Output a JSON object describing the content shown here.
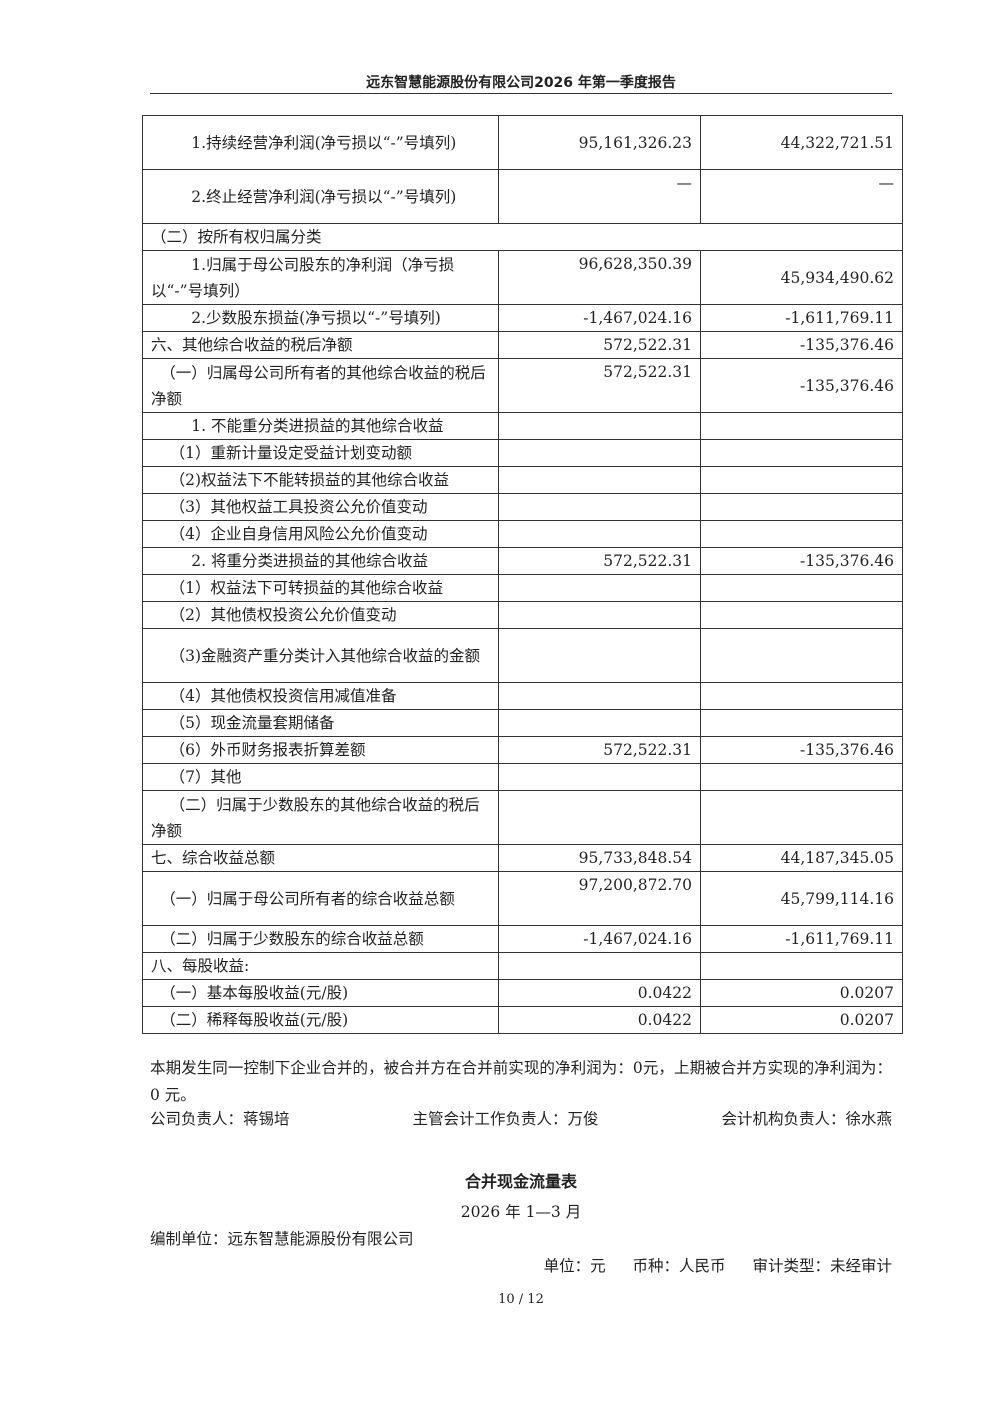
{
  "header": {
    "title": "远东智慧能源股份有限公司2026 年第一季度报告"
  },
  "table": {
    "rows": [
      {
        "label": "1.持续经营净利润(净亏损以“-”号填列)",
        "level": 3,
        "v1": "95,161,326.23",
        "v2": "44,322,721.51",
        "lines": 2,
        "v1_top": false
      },
      {
        "label": "2.终止经营净利润(净亏损以“-”号填列)",
        "level": 3,
        "v1": "—",
        "v2": "—",
        "lines": 2,
        "v1_top": true,
        "v2_top": true
      },
      {
        "label": "（二）按所有权归属分类",
        "level": 0,
        "span": true,
        "lines": 1
      },
      {
        "label": "1.归属于母公司股东的净利润（净亏损以“-”号填列）",
        "level": 3,
        "v1": "96,628,350.39",
        "v2": "45,934,490.62",
        "lines": 2,
        "v1_top": true
      },
      {
        "label": "2.少数股东损益(净亏损以“-”号填列)",
        "level": 3,
        "v1": "-1,467,024.16",
        "v2": "-1,611,769.11",
        "lines": 1
      },
      {
        "label": "六、其他综合收益的税后净额",
        "level": 0,
        "v1": "572,522.31",
        "v2": "-135,376.46",
        "lines": 1
      },
      {
        "label": "（一）归属母公司所有者的其他综合收益的税后净额",
        "level": 1,
        "v1": "572,522.31",
        "v2": "-135,376.46",
        "lines": 2,
        "v1_top": true
      },
      {
        "label": "1. 不能重分类进损益的其他综合收益",
        "level": 3,
        "v1": "",
        "v2": "",
        "lines": 1
      },
      {
        "label": "（1）重新计量设定受益计划变动额",
        "level": 2,
        "v1": "",
        "v2": "",
        "lines": 1
      },
      {
        "label": "（2)权益法下不能转损益的其他综合收益",
        "level": 2,
        "v1": "",
        "v2": "",
        "lines": 1
      },
      {
        "label": "（3）其他权益工具投资公允价值变动",
        "level": 2,
        "v1": "",
        "v2": "",
        "lines": 1
      },
      {
        "label": "（4）企业自身信用风险公允价值变动",
        "level": 2,
        "v1": "",
        "v2": "",
        "lines": 1
      },
      {
        "label": "2. 将重分类进损益的其他综合收益",
        "level": 3,
        "v1": "572,522.31",
        "v2": "-135,376.46",
        "lines": 1
      },
      {
        "label": "（1）权益法下可转损益的其他综合收益",
        "level": 2,
        "v1": "",
        "v2": "",
        "lines": 1
      },
      {
        "label": "（2）其他债权投资公允价值变动",
        "level": 2,
        "v1": "",
        "v2": "",
        "lines": 1
      },
      {
        "label": "（3)金融资产重分类计入其他综合收益的金额",
        "level": 2,
        "v1": "",
        "v2": "",
        "lines": 2
      },
      {
        "label": "（4）其他债权投资信用减值准备",
        "level": 2,
        "v1": "",
        "v2": "",
        "lines": 1
      },
      {
        "label": "（5）现金流量套期储备",
        "level": 2,
        "v1": "",
        "v2": "",
        "lines": 1
      },
      {
        "label": "（6）外币财务报表折算差额",
        "level": 2,
        "v1": "572,522.31",
        "v2": "-135,376.46",
        "lines": 1
      },
      {
        "label": "（7）其他",
        "level": 2,
        "v1": "",
        "v2": "",
        "lines": 1
      },
      {
        "label": "（二）归属于少数股东的其他综合收益的税后净额",
        "level": 2,
        "v1": "",
        "v2": "",
        "lines": 2
      },
      {
        "label": "七、综合收益总额",
        "level": 0,
        "v1": "95,733,848.54",
        "v2": "44,187,345.05",
        "lines": 1
      },
      {
        "label": "（一）归属于母公司所有者的综合收益总额",
        "level": 1,
        "v1": "97,200,872.70",
        "v2": "45,799,114.16",
        "lines": 2,
        "v1_top": true
      },
      {
        "label": "（二）归属于少数股东的综合收益总额",
        "level": 1,
        "v1": "-1,467,024.16",
        "v2": "-1,611,769.11",
        "lines": 1
      },
      {
        "label": "八、每股收益:",
        "level": 0,
        "v1": "",
        "v2": "",
        "lines": 1
      },
      {
        "label": "（一）基本每股收益(元/股)",
        "level": 1,
        "v1": "0.0422",
        "v2": "0.0207",
        "lines": 1
      },
      {
        "label": "（二）稀释每股收益(元/股)",
        "level": 1,
        "v1": "0.0422",
        "v2": "0.0207",
        "lines": 1
      }
    ]
  },
  "note": "本期发生同一控制下企业合并的，被合并方在合并前实现的净利润为：0元，上期被合并方实现的净利润为：0 元。",
  "signatures": {
    "company_head": "公司负责人：蒋锡培",
    "accounting_head": "主管会计工作负责人：万俊",
    "agency_head": "会计机构负责人：徐水燕"
  },
  "next_statement": {
    "title": "合并现金流量表",
    "period": "2026 年 1—3 月",
    "preparer": "编制单位：远东智慧能源股份有限公司",
    "unit": "单位：元",
    "currency": "币种：人民币",
    "audit": "审计类型：未经审计"
  },
  "page": {
    "number": "10 / 12"
  }
}
